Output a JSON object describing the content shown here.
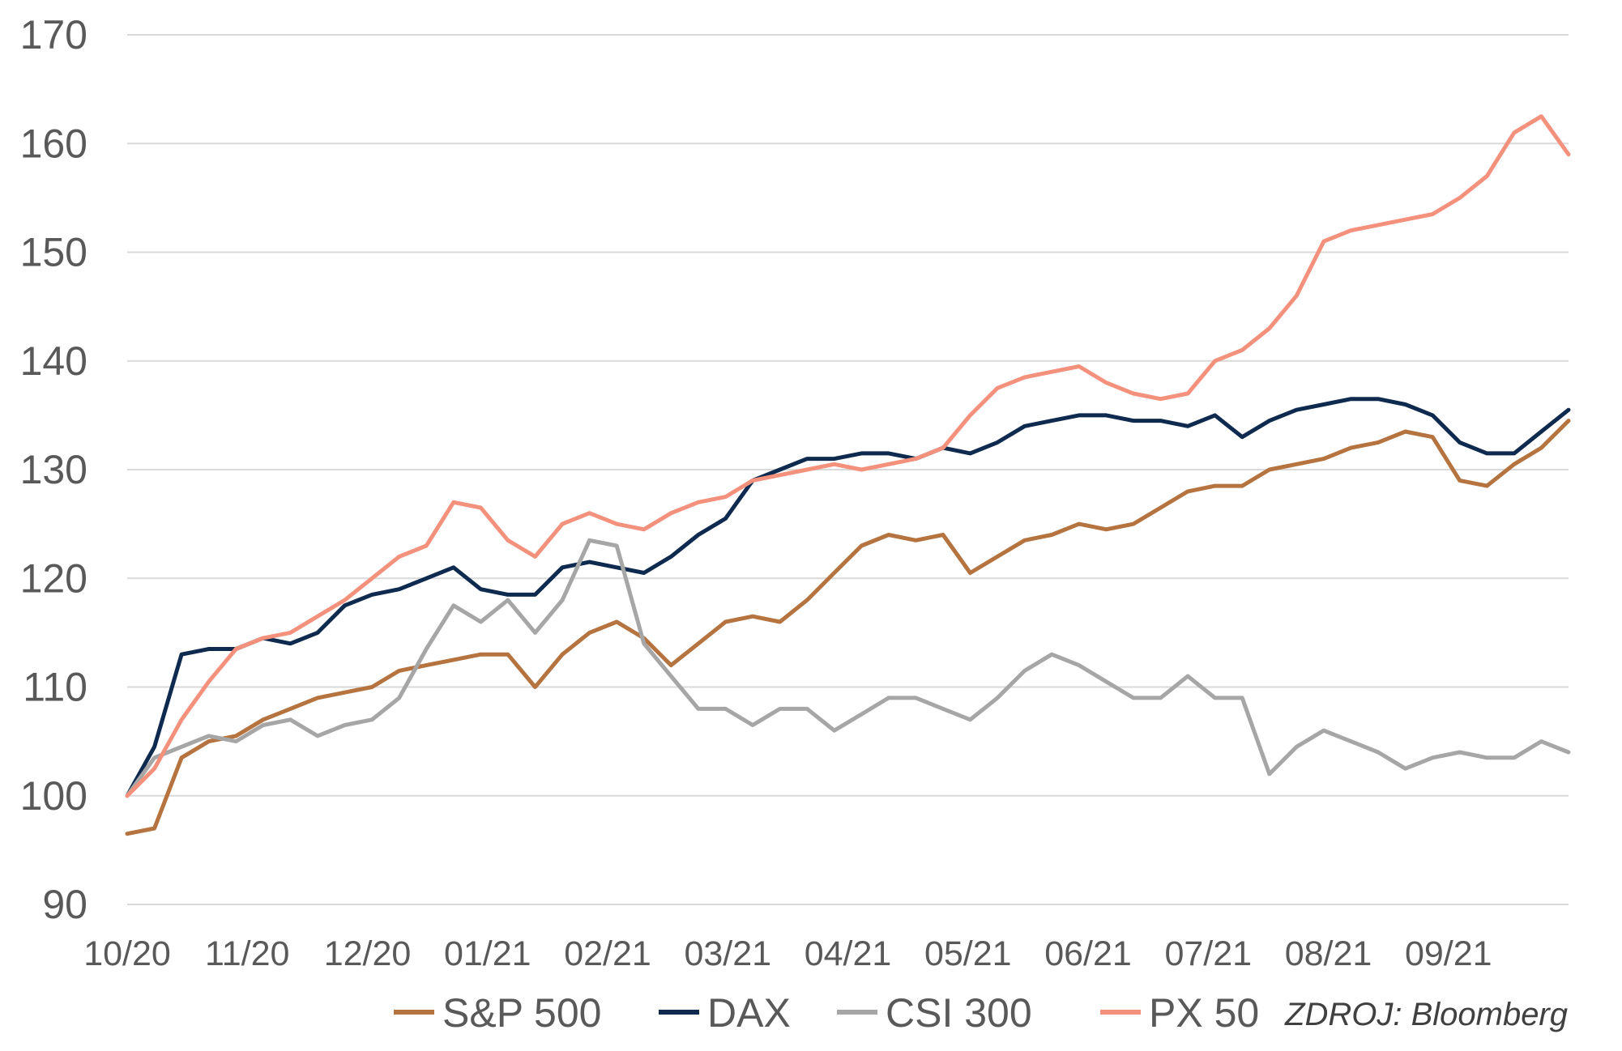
{
  "source_note": "ZDROJ: Bloomberg",
  "chart_data": {
    "type": "line",
    "title": "",
    "xlabel": "",
    "ylabel": "",
    "ylim": [
      90,
      170
    ],
    "yticks": [
      90,
      100,
      110,
      120,
      130,
      140,
      150,
      160,
      170
    ],
    "x_tick_labels": [
      "10/20",
      "11/20",
      "12/20",
      "01/21",
      "02/21",
      "03/21",
      "04/21",
      "05/21",
      "06/21",
      "07/21",
      "08/21",
      "09/21"
    ],
    "grid": "horizontal",
    "legend_position": "bottom",
    "x": [
      "10/20",
      "10/20",
      "10/20",
      "10/20",
      "10/20",
      "11/20",
      "11/20",
      "11/20",
      "11/20",
      "12/20",
      "12/20",
      "12/20",
      "12/20",
      "12/20",
      "01/21",
      "01/21",
      "01/21",
      "01/21",
      "01/21",
      "02/21",
      "02/21",
      "02/21",
      "02/21",
      "03/21",
      "03/21",
      "03/21",
      "03/21",
      "04/21",
      "04/21",
      "04/21",
      "04/21",
      "04/21",
      "05/21",
      "05/21",
      "05/21",
      "05/21",
      "06/21",
      "06/21",
      "06/21",
      "06/21",
      "06/21",
      "07/21",
      "07/21",
      "07/21",
      "07/21",
      "08/21",
      "08/21",
      "08/21",
      "08/21",
      "09/21",
      "09/21",
      "09/21",
      "09/21",
      "09/21"
    ],
    "series": [
      {
        "name": "S&P 500",
        "color": "#b5733f",
        "values": [
          96.5,
          97.0,
          103.5,
          105.0,
          105.5,
          107.0,
          108.0,
          109.0,
          109.5,
          110.0,
          111.5,
          112.0,
          112.5,
          113.0,
          113.0,
          110.0,
          113.0,
          115.0,
          116.0,
          114.5,
          112.0,
          114.0,
          116.0,
          116.5,
          116.0,
          118.0,
          120.5,
          123.0,
          124.0,
          123.5,
          124.0,
          120.5,
          122.0,
          123.5,
          124.0,
          125.0,
          124.5,
          125.0,
          126.5,
          128.0,
          128.5,
          128.5,
          130.0,
          130.5,
          131.0,
          132.0,
          132.5,
          133.5,
          133.0,
          129.0,
          128.5,
          130.5,
          132.0,
          134.5
        ]
      },
      {
        "name": "DAX",
        "color": "#0e2a4f",
        "values": [
          100.0,
          104.5,
          113.0,
          113.5,
          113.5,
          114.5,
          114.0,
          115.0,
          117.5,
          118.5,
          119.0,
          120.0,
          121.0,
          119.0,
          118.5,
          118.5,
          121.0,
          121.5,
          121.0,
          120.5,
          122.0,
          124.0,
          125.5,
          129.0,
          130.0,
          131.0,
          131.0,
          131.5,
          131.5,
          131.0,
          132.0,
          131.5,
          132.5,
          134.0,
          134.5,
          135.0,
          135.0,
          134.5,
          134.5,
          134.0,
          135.0,
          133.0,
          134.5,
          135.5,
          136.0,
          136.5,
          136.5,
          136.0,
          135.0,
          132.5,
          131.5,
          131.5,
          133.5,
          135.5
        ]
      },
      {
        "name": "CSI 300",
        "color": "#a6a6a6",
        "values": [
          100.0,
          103.5,
          104.5,
          105.5,
          105.0,
          106.5,
          107.0,
          105.5,
          106.5,
          107.0,
          109.0,
          113.5,
          117.5,
          116.0,
          118.0,
          115.0,
          118.0,
          123.5,
          123.0,
          114.0,
          111.0,
          108.0,
          108.0,
          106.5,
          108.0,
          108.0,
          106.0,
          107.5,
          109.0,
          109.0,
          108.0,
          107.0,
          109.0,
          111.5,
          113.0,
          112.0,
          110.5,
          109.0,
          109.0,
          111.0,
          109.0,
          109.0,
          102.0,
          104.5,
          106.0,
          105.0,
          104.0,
          102.5,
          103.5,
          104.0,
          103.5,
          103.5,
          105.0,
          104.0
        ]
      },
      {
        "name": "PX 50",
        "color": "#f4917c",
        "values": [
          100.0,
          102.5,
          107.0,
          110.5,
          113.5,
          114.5,
          115.0,
          116.5,
          118.0,
          120.0,
          122.0,
          123.0,
          127.0,
          126.5,
          123.5,
          122.0,
          125.0,
          126.0,
          125.0,
          124.5,
          126.0,
          127.0,
          127.5,
          129.0,
          129.5,
          130.0,
          130.5,
          130.0,
          130.5,
          131.0,
          132.0,
          135.0,
          137.5,
          138.5,
          139.0,
          139.5,
          138.0,
          137.0,
          136.5,
          137.0,
          140.0,
          141.0,
          143.0,
          146.0,
          151.0,
          152.0,
          152.5,
          153.0,
          153.5,
          155.0,
          157.0,
          161.0,
          162.5,
          159.0
        ]
      }
    ]
  }
}
